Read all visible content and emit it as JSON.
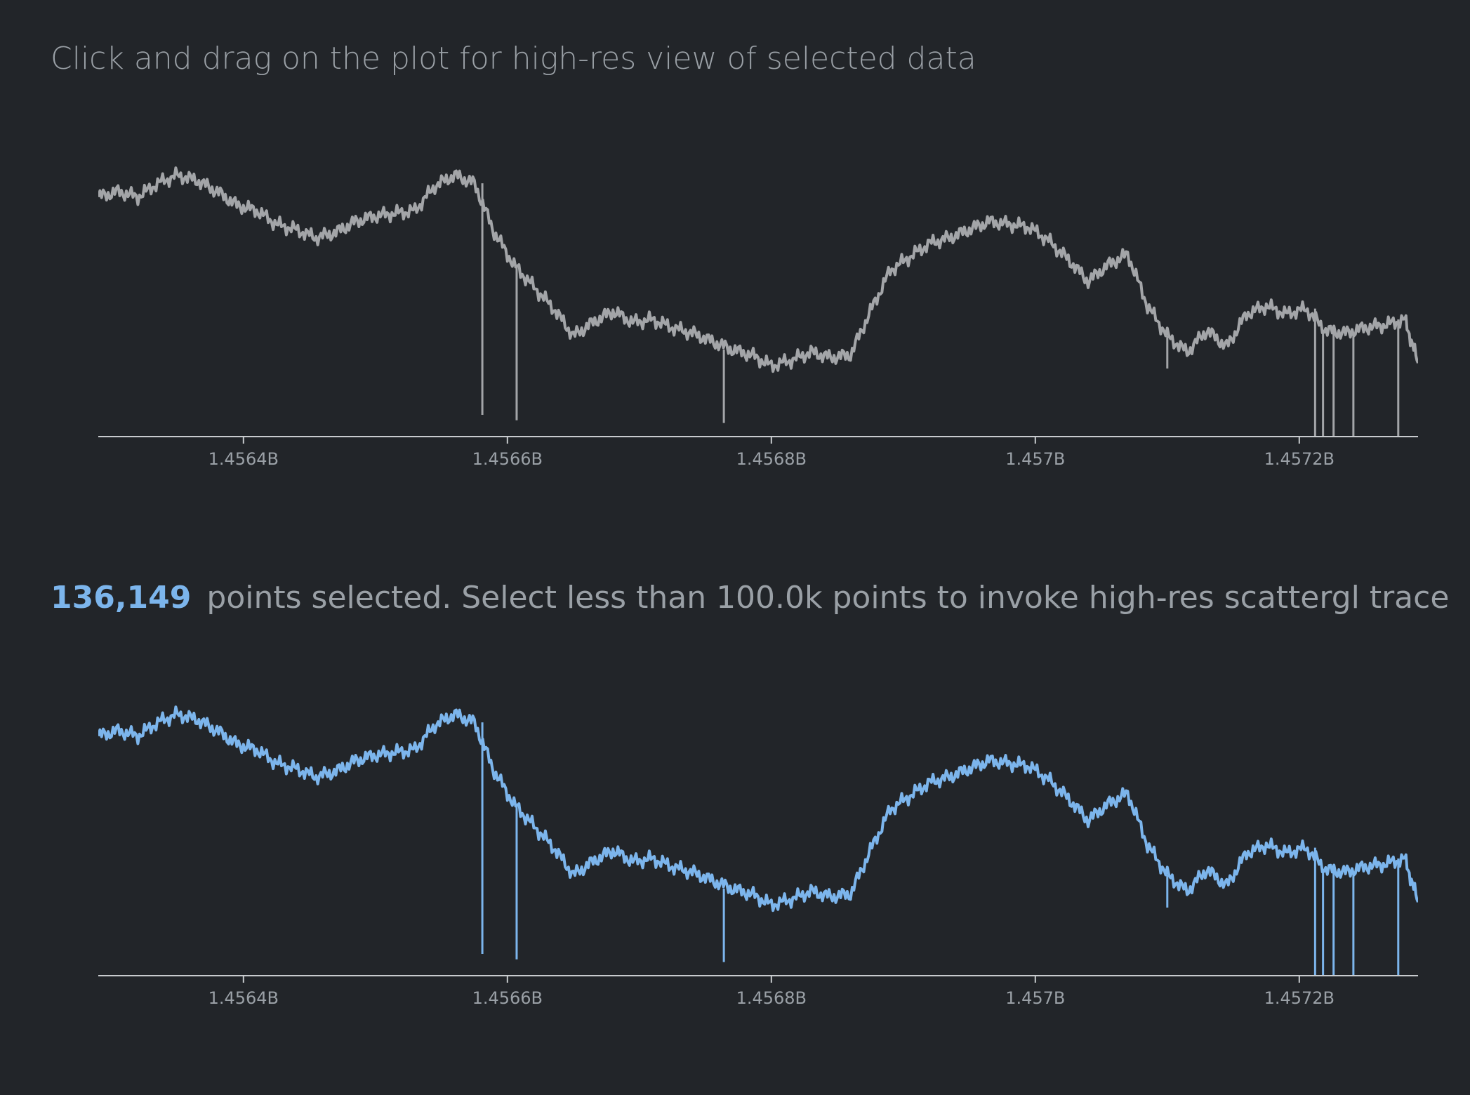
{
  "page": {
    "instruction": "Click and drag on the plot for high-res view of selected data",
    "selected_count": "136,149",
    "selected_message": "points selected. Select less than 100.0k points to invoke high-res scattergl trace"
  },
  "colors": {
    "background": "#222529",
    "overview_line": "#a3a5a8",
    "detail_line": "#7cb5ec",
    "axis": "#c8cbce",
    "text": "#9aa0a6"
  },
  "chart_data": [
    {
      "type": "line",
      "name": "overview-plot",
      "xlim": [
        1456290000.0,
        1457290000.0
      ],
      "x_ticks": [
        1456400000.0,
        1456600000.0,
        1456800000.0,
        1457000000.0,
        1457200000.0
      ],
      "x_tick_labels": [
        "1.4564B",
        "1.4566B",
        "1.4568B",
        "1.457B",
        "1.4572B"
      ],
      "ylim": [
        0,
        100
      ],
      "y_axis_visible": false,
      "grid": false,
      "x": [
        1456290000.0,
        1456305000.0,
        1456320000.0,
        1456335000.0,
        1456350000.0,
        1456365000.0,
        1456380000.0,
        1456395000.0,
        1456410000.0,
        1456425000.0,
        1456440000.0,
        1456455000.0,
        1456470000.0,
        1456485000.0,
        1456500000.0,
        1456515000.0,
        1456530000.0,
        1456545000.0,
        1456560000.0,
        1456575000.0,
        1456590000.0,
        1456605000.0,
        1456620000.0,
        1456635000.0,
        1456650000.0,
        1456665000.0,
        1456680000.0,
        1456695000.0,
        1456710000.0,
        1456725000.0,
        1456740000.0,
        1456755000.0,
        1456770000.0,
        1456785000.0,
        1456800000.0,
        1456815000.0,
        1456830000.0,
        1456845000.0,
        1456860000.0,
        1456875000.0,
        1456890000.0,
        1456905000.0,
        1456920000.0,
        1456935000.0,
        1456950000.0,
        1456965000.0,
        1456980000.0,
        1456995000.0,
        1457010000.0,
        1457025000.0,
        1457040000.0,
        1457055000.0,
        1457070000.0,
        1457085000.0,
        1457100000.0,
        1457115000.0,
        1457130000.0,
        1457145000.0,
        1457160000.0,
        1457175000.0,
        1457190000.0,
        1457205000.0,
        1457220000.0,
        1457235000.0,
        1457250000.0,
        1457265000.0,
        1457280000.0,
        1457290000.0
      ],
      "y": [
        88,
        90,
        88,
        93,
        96,
        94,
        90,
        85,
        83,
        78,
        76,
        73,
        75,
        79,
        81,
        82,
        83,
        92,
        96,
        93,
        75,
        63,
        55,
        47,
        37,
        42,
        46,
        42,
        43,
        40,
        38,
        35,
        32,
        30,
        26,
        28,
        31,
        29,
        30,
        46,
        61,
        66,
        71,
        73,
        76,
        79,
        78,
        77,
        72,
        65,
        57,
        63,
        67,
        48,
        37,
        31,
        39,
        33,
        45,
        48,
        45,
        47,
        39,
        38,
        40,
        41,
        43,
        27
      ],
      "spikes": [
        {
          "x": 1456581000.0,
          "y": 8
        },
        {
          "x": 1456607000.0,
          "y": 6
        },
        {
          "x": 1456764000.0,
          "y": 5
        },
        {
          "x": 1457100000.0,
          "y": 25
        },
        {
          "x": 1457212000.0,
          "y": 0
        },
        {
          "x": 1457218000.0,
          "y": 0
        },
        {
          "x": 1457226000.0,
          "y": 0
        },
        {
          "x": 1457241000.0,
          "y": 0
        },
        {
          "x": 1457275000.0,
          "y": 0
        }
      ]
    },
    {
      "type": "line",
      "name": "detail-plot",
      "xlim": [
        1456290000.0,
        1457290000.0
      ],
      "x_ticks": [
        1456400000.0,
        1456600000.0,
        1456800000.0,
        1457000000.0,
        1457200000.0
      ],
      "x_tick_labels": [
        "1.4564B",
        "1.4566B",
        "1.4568B",
        "1.457B",
        "1.4572B"
      ],
      "ylim": [
        0,
        100
      ],
      "y_axis_visible": false,
      "grid": false,
      "x": [
        1456290000.0,
        1456305000.0,
        1456320000.0,
        1456335000.0,
        1456350000.0,
        1456365000.0,
        1456380000.0,
        1456395000.0,
        1456410000.0,
        1456425000.0,
        1456440000.0,
        1456455000.0,
        1456470000.0,
        1456485000.0,
        1456500000.0,
        1456515000.0,
        1456530000.0,
        1456545000.0,
        1456560000.0,
        1456575000.0,
        1456590000.0,
        1456605000.0,
        1456620000.0,
        1456635000.0,
        1456650000.0,
        1456665000.0,
        1456680000.0,
        1456695000.0,
        1456710000.0,
        1456725000.0,
        1456740000.0,
        1456755000.0,
        1456770000.0,
        1456785000.0,
        1456800000.0,
        1456815000.0,
        1456830000.0,
        1456845000.0,
        1456860000.0,
        1456875000.0,
        1456890000.0,
        1456905000.0,
        1456920000.0,
        1456935000.0,
        1456950000.0,
        1456965000.0,
        1456980000.0,
        1456995000.0,
        1457010000.0,
        1457025000.0,
        1457040000.0,
        1457055000.0,
        1457070000.0,
        1457085000.0,
        1457100000.0,
        1457115000.0,
        1457130000.0,
        1457145000.0,
        1457160000.0,
        1457175000.0,
        1457190000.0,
        1457205000.0,
        1457220000.0,
        1457235000.0,
        1457250000.0,
        1457265000.0,
        1457280000.0,
        1457290000.0
      ],
      "y": [
        88,
        90,
        88,
        93,
        96,
        94,
        90,
        85,
        83,
        78,
        76,
        73,
        75,
        79,
        81,
        82,
        83,
        92,
        96,
        93,
        75,
        63,
        55,
        47,
        37,
        42,
        46,
        42,
        43,
        40,
        38,
        35,
        32,
        30,
        26,
        28,
        31,
        29,
        30,
        46,
        61,
        66,
        71,
        73,
        76,
        79,
        78,
        77,
        72,
        65,
        57,
        63,
        67,
        48,
        37,
        31,
        39,
        33,
        45,
        48,
        45,
        47,
        39,
        38,
        40,
        41,
        43,
        27
      ],
      "spikes": [
        {
          "x": 1456581000.0,
          "y": 8
        },
        {
          "x": 1456607000.0,
          "y": 6
        },
        {
          "x": 1456764000.0,
          "y": 5
        },
        {
          "x": 1457100000.0,
          "y": 25
        },
        {
          "x": 1457212000.0,
          "y": 0
        },
        {
          "x": 1457218000.0,
          "y": 0
        },
        {
          "x": 1457226000.0,
          "y": 0
        },
        {
          "x": 1457241000.0,
          "y": 0
        },
        {
          "x": 1457275000.0,
          "y": 0
        }
      ]
    }
  ]
}
